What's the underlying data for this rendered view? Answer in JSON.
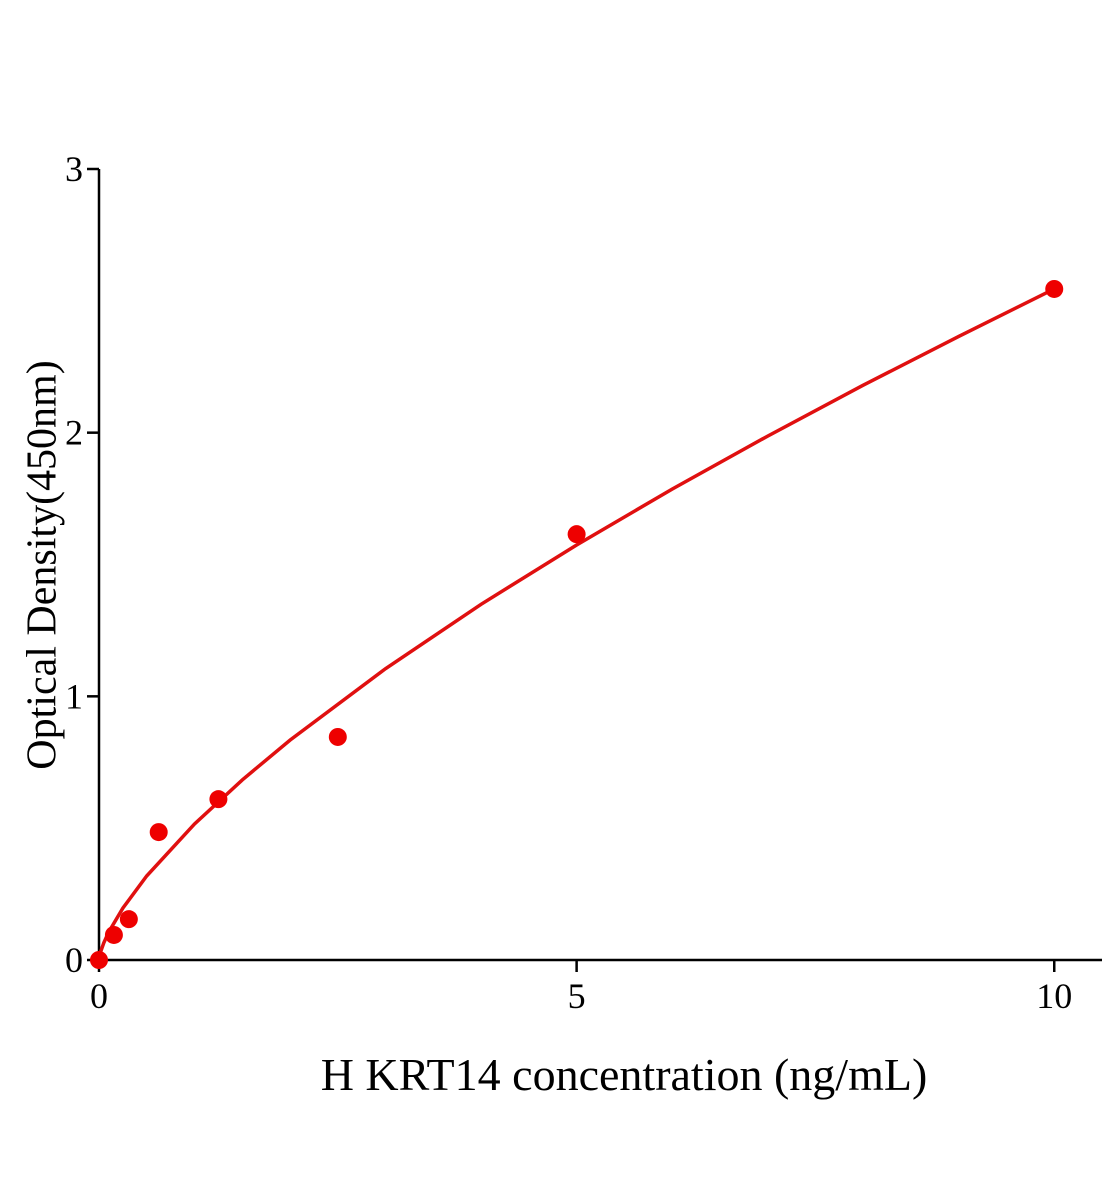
{
  "chart_data": {
    "type": "scatter",
    "x_label": "H KRT14 concentration (ng/mL)",
    "y_label": "Optical Density(450nm)",
    "xlim": [
      0,
      10.5
    ],
    "ylim": [
      0,
      3
    ],
    "xticks": [
      0,
      5,
      10
    ],
    "yticks": [
      0,
      1,
      2,
      3
    ],
    "series": [
      {
        "mode": "markers",
        "color": "#ee0000",
        "x": [
          0,
          0.156,
          0.3125,
          0.625,
          1.25,
          2.5,
          5,
          10
        ],
        "values": [
          0,
          0.095,
          0.155,
          0.485,
          0.61,
          0.846,
          1.615,
          2.545
        ]
      },
      {
        "mode": "line",
        "color": "#e01010",
        "x": [
          0,
          0.02,
          0.05,
          0.1,
          0.25,
          0.5,
          1,
          1.5,
          2,
          3,
          4,
          5,
          6,
          7,
          8,
          9,
          10
        ],
        "values": [
          0,
          0.034,
          0.065,
          0.105,
          0.197,
          0.319,
          0.516,
          0.683,
          0.834,
          1.105,
          1.349,
          1.574,
          1.786,
          1.987,
          2.18,
          2.365,
          2.545
        ]
      }
    ]
  }
}
